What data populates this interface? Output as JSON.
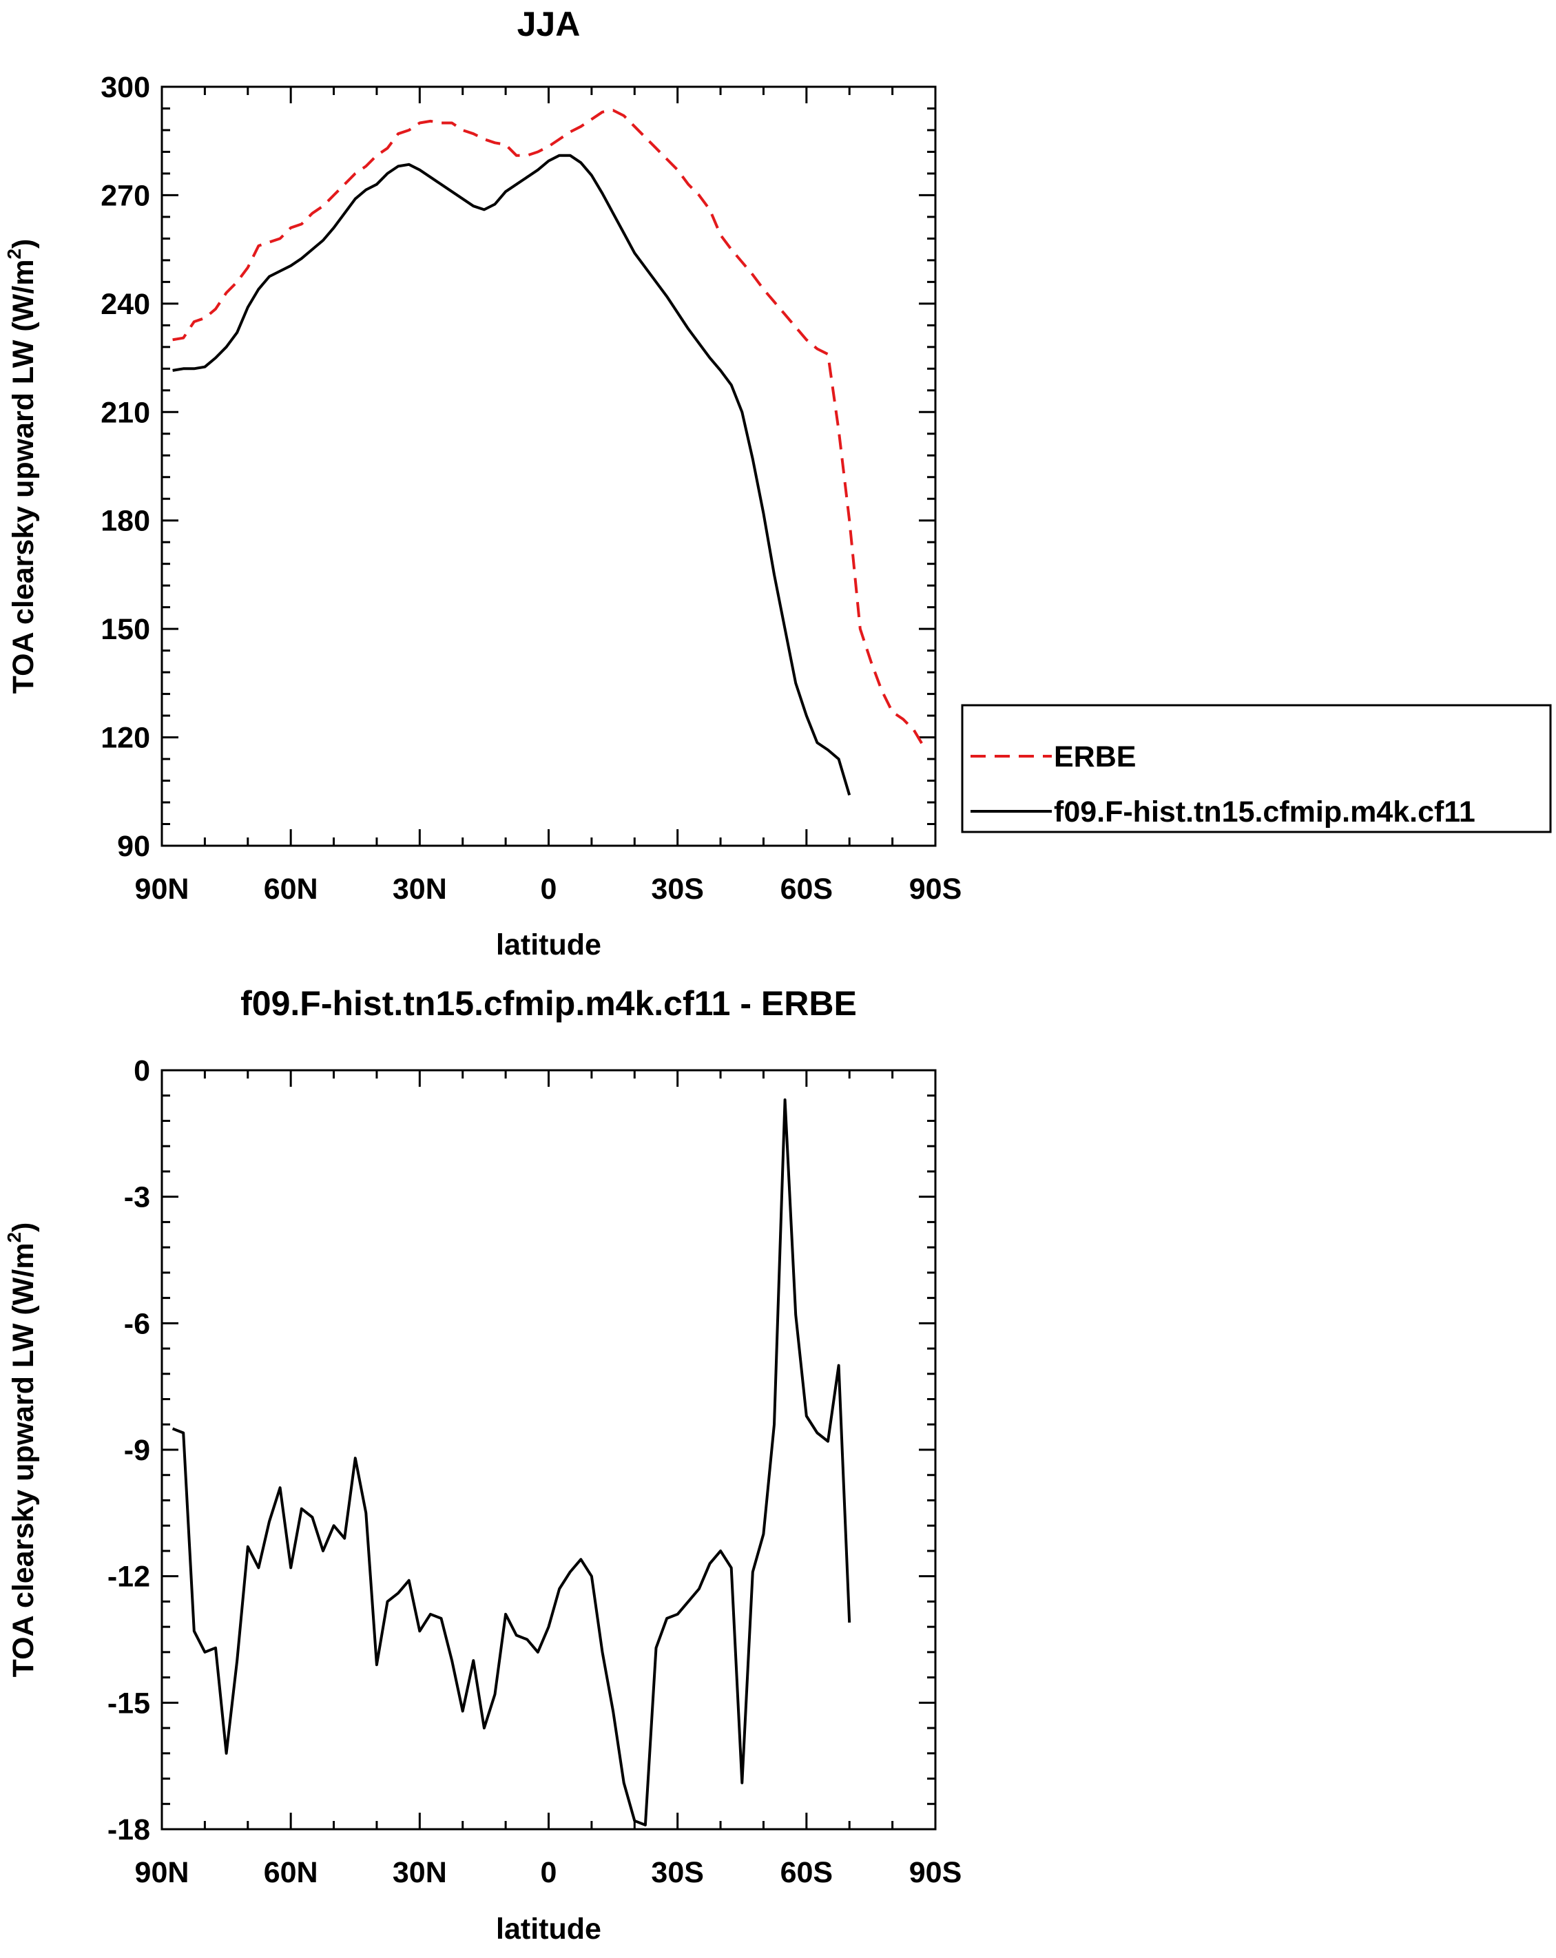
{
  "chart_data": [
    {
      "type": "line",
      "title": "JJA",
      "xlabel": "latitude",
      "ylabel": "TOA clearsky upward LW (W/m",
      "ylabel_sup": "2",
      "ylabel_close": ")",
      "xlim": [
        -90,
        90
      ],
      "ylim": [
        90,
        300
      ],
      "x_ticks": [
        {
          "value": -90,
          "label": "90N"
        },
        {
          "value": -60,
          "label": "60N"
        },
        {
          "value": -30,
          "label": "30N"
        },
        {
          "value": 0,
          "label": "0"
        },
        {
          "value": 30,
          "label": "30S"
        },
        {
          "value": 60,
          "label": "60S"
        },
        {
          "value": 90,
          "label": "90S"
        }
      ],
      "y_ticks": [
        300,
        270,
        240,
        210,
        180,
        150,
        120,
        90
      ],
      "grid": false,
      "legend_position": "right",
      "series": [
        {
          "name": "ERBE",
          "color": "#e31a1c",
          "dash": true,
          "points": [
            [
              -87.5,
              230
            ],
            [
              -85,
              230.5
            ],
            [
              -82.5,
              235
            ],
            [
              -80,
              236
            ],
            [
              -77.5,
              238.5
            ],
            [
              -75,
              243
            ],
            [
              -72.5,
              246
            ],
            [
              -70,
              250
            ],
            [
              -67.5,
              256
            ],
            [
              -65,
              257
            ],
            [
              -62.5,
              258
            ],
            [
              -60,
              261
            ],
            [
              -57.5,
              262
            ],
            [
              -55,
              265
            ],
            [
              -52.5,
              267
            ],
            [
              -50,
              270
            ],
            [
              -47.5,
              273
            ],
            [
              -45,
              276
            ],
            [
              -42.5,
              278
            ],
            [
              -40,
              281
            ],
            [
              -37.5,
              283
            ],
            [
              -35,
              287
            ],
            [
              -32.5,
              288
            ],
            [
              -30,
              290
            ],
            [
              -27.5,
              290.5
            ],
            [
              -25,
              290
            ],
            [
              -22.5,
              290
            ],
            [
              -20,
              288
            ],
            [
              -17.5,
              287
            ],
            [
              -15,
              285.5
            ],
            [
              -12.5,
              284.5
            ],
            [
              -10,
              284
            ],
            [
              -7.5,
              281
            ],
            [
              -5,
              281
            ],
            [
              -2.5,
              282
            ],
            [
              0,
              283.5
            ],
            [
              2.5,
              285.5
            ],
            [
              5,
              287.5
            ],
            [
              7.5,
              289
            ],
            [
              10,
              291
            ],
            [
              12.5,
              293
            ],
            [
              15,
              293.5
            ],
            [
              17.5,
              292
            ],
            [
              20,
              289
            ],
            [
              22.5,
              286
            ],
            [
              25,
              283
            ],
            [
              27.5,
              280
            ],
            [
              30,
              277
            ],
            [
              32.5,
              273
            ],
            [
              35,
              270
            ],
            [
              37.5,
              266
            ],
            [
              40,
              259
            ],
            [
              42.5,
              255
            ],
            [
              45,
              251.5
            ],
            [
              47.5,
              248
            ],
            [
              50,
              244
            ],
            [
              52.5,
              240.5
            ],
            [
              55,
              237
            ],
            [
              57.5,
              233.5
            ],
            [
              60,
              230
            ],
            [
              62.5,
              227.5
            ],
            [
              65,
              226
            ],
            [
              67.5,
              205
            ],
            [
              70,
              180
            ],
            [
              72.5,
              150
            ],
            [
              75,
              141
            ],
            [
              77.5,
              133
            ],
            [
              80,
              127
            ],
            [
              82.5,
              125
            ],
            [
              85,
              122
            ],
            [
              87.5,
              117
            ]
          ]
        },
        {
          "name": "f09.F-hist.tn15.cfmip.m4k.cf11",
          "color": "#000000",
          "dash": false,
          "points": [
            [
              -87.5,
              221.5
            ],
            [
              -85,
              222
            ],
            [
              -82.5,
              222
            ],
            [
              -80,
              222.5
            ],
            [
              -77.5,
              225
            ],
            [
              -75,
              228
            ],
            [
              -72.5,
              232
            ],
            [
              -70,
              239
            ],
            [
              -67.5,
              244
            ],
            [
              -65,
              247.5
            ],
            [
              -62.5,
              249
            ],
            [
              -60,
              250.5
            ],
            [
              -57.5,
              252.5
            ],
            [
              -55,
              255
            ],
            [
              -52.5,
              257.5
            ],
            [
              -50,
              261
            ],
            [
              -47.5,
              265
            ],
            [
              -45,
              269
            ],
            [
              -42.5,
              271.5
            ],
            [
              -40,
              273
            ],
            [
              -37.5,
              276
            ],
            [
              -35,
              278
            ],
            [
              -32.5,
              278.5
            ],
            [
              -30,
              277
            ],
            [
              -27.5,
              275
            ],
            [
              -25,
              273
            ],
            [
              -22.5,
              271
            ],
            [
              -20,
              269
            ],
            [
              -17.5,
              267
            ],
            [
              -15,
              266
            ],
            [
              -12.5,
              267.5
            ],
            [
              -10,
              271
            ],
            [
              -7.5,
              273
            ],
            [
              -5,
              275
            ],
            [
              -2.5,
              277
            ],
            [
              0,
              279.5
            ],
            [
              2.5,
              281
            ],
            [
              5,
              281
            ],
            [
              7.5,
              279
            ],
            [
              10,
              275.5
            ],
            [
              12.5,
              270.5
            ],
            [
              15,
              265
            ],
            [
              17.5,
              259.5
            ],
            [
              20,
              254
            ],
            [
              22.5,
              250
            ],
            [
              25,
              246
            ],
            [
              27.5,
              242
            ],
            [
              30,
              237.5
            ],
            [
              32.5,
              233
            ],
            [
              35,
              229
            ],
            [
              37.5,
              225
            ],
            [
              40,
              221.5
            ],
            [
              42.5,
              217.5
            ],
            [
              45,
              210
            ],
            [
              47.5,
              197
            ],
            [
              50,
              182
            ],
            [
              52.5,
              165
            ],
            [
              55,
              150
            ],
            [
              57.5,
              135
            ],
            [
              60,
              126
            ],
            [
              62.5,
              118.5
            ],
            [
              65,
              116.5
            ],
            [
              67.5,
              114
            ],
            [
              70,
              104
            ]
          ]
        }
      ]
    },
    {
      "type": "line",
      "title": "f09.F-hist.tn15.cfmip.m4k.cf11 - ERBE",
      "xlabel": "latitude",
      "ylabel": "TOA clearsky upward LW (W/m",
      "ylabel_sup": "2",
      "ylabel_close": ")",
      "xlim": [
        -90,
        90
      ],
      "ylim": [
        -18,
        0
      ],
      "x_ticks": [
        {
          "value": -90,
          "label": "90N"
        },
        {
          "value": -60,
          "label": "60N"
        },
        {
          "value": -30,
          "label": "30N"
        },
        {
          "value": 0,
          "label": "0"
        },
        {
          "value": 30,
          "label": "30S"
        },
        {
          "value": 60,
          "label": "60S"
        },
        {
          "value": 90,
          "label": "90S"
        }
      ],
      "y_ticks": [
        0,
        -3,
        -6,
        -9,
        -12,
        -15,
        -18
      ],
      "grid": false,
      "series": [
        {
          "color": "#000000",
          "dash": false,
          "points": [
            [
              -87.5,
              -8.5
            ],
            [
              -85,
              -8.6
            ],
            [
              -82.5,
              -13.3
            ],
            [
              -80,
              -13.8
            ],
            [
              -77.5,
              -13.7
            ],
            [
              -75,
              -16.2
            ],
            [
              -72.5,
              -14
            ],
            [
              -70,
              -11.3
            ],
            [
              -67.5,
              -11.8
            ],
            [
              -65,
              -10.7
            ],
            [
              -62.5,
              -9.9
            ],
            [
              -60,
              -11.8
            ],
            [
              -57.5,
              -10.4
            ],
            [
              -55,
              -10.6
            ],
            [
              -52.5,
              -11.4
            ],
            [
              -50,
              -10.8
            ],
            [
              -47.5,
              -11.1
            ],
            [
              -45,
              -9.2
            ],
            [
              -42.5,
              -10.5
            ],
            [
              -40,
              -14.1
            ],
            [
              -37.5,
              -12.6
            ],
            [
              -35,
              -12.4
            ],
            [
              -32.5,
              -12.1
            ],
            [
              -30,
              -13.3
            ],
            [
              -27.5,
              -12.9
            ],
            [
              -25,
              -13
            ],
            [
              -22.5,
              -14
            ],
            [
              -20,
              -15.2
            ],
            [
              -17.5,
              -14
            ],
            [
              -15,
              -15.6
            ],
            [
              -12.5,
              -14.8
            ],
            [
              -10,
              -12.9
            ],
            [
              -7.5,
              -13.4
            ],
            [
              -5,
              -13.5
            ],
            [
              -2.5,
              -13.8
            ],
            [
              0,
              -13.2
            ],
            [
              2.5,
              -12.3
            ],
            [
              5,
              -11.9
            ],
            [
              7.5,
              -11.6
            ],
            [
              10,
              -12
            ],
            [
              12.5,
              -13.8
            ],
            [
              15,
              -15.2
            ],
            [
              17.5,
              -16.9
            ],
            [
              20,
              -17.8
            ],
            [
              22.5,
              -17.9
            ],
            [
              25,
              -13.7
            ],
            [
              27.5,
              -13
            ],
            [
              30,
              -12.9
            ],
            [
              32.5,
              -12.6
            ],
            [
              35,
              -12.3
            ],
            [
              37.5,
              -11.7
            ],
            [
              40,
              -11.4
            ],
            [
              42.5,
              -11.8
            ],
            [
              45,
              -16.9
            ],
            [
              47.5,
              -11.9
            ],
            [
              50,
              -11
            ],
            [
              52.5,
              -8.4
            ],
            [
              55,
              -0.7
            ],
            [
              57.5,
              -5.8
            ],
            [
              60,
              -8.2
            ],
            [
              62.5,
              -8.6
            ],
            [
              65,
              -8.8
            ],
            [
              67.5,
              -7
            ],
            [
              70,
              -13.1
            ]
          ]
        }
      ]
    }
  ]
}
